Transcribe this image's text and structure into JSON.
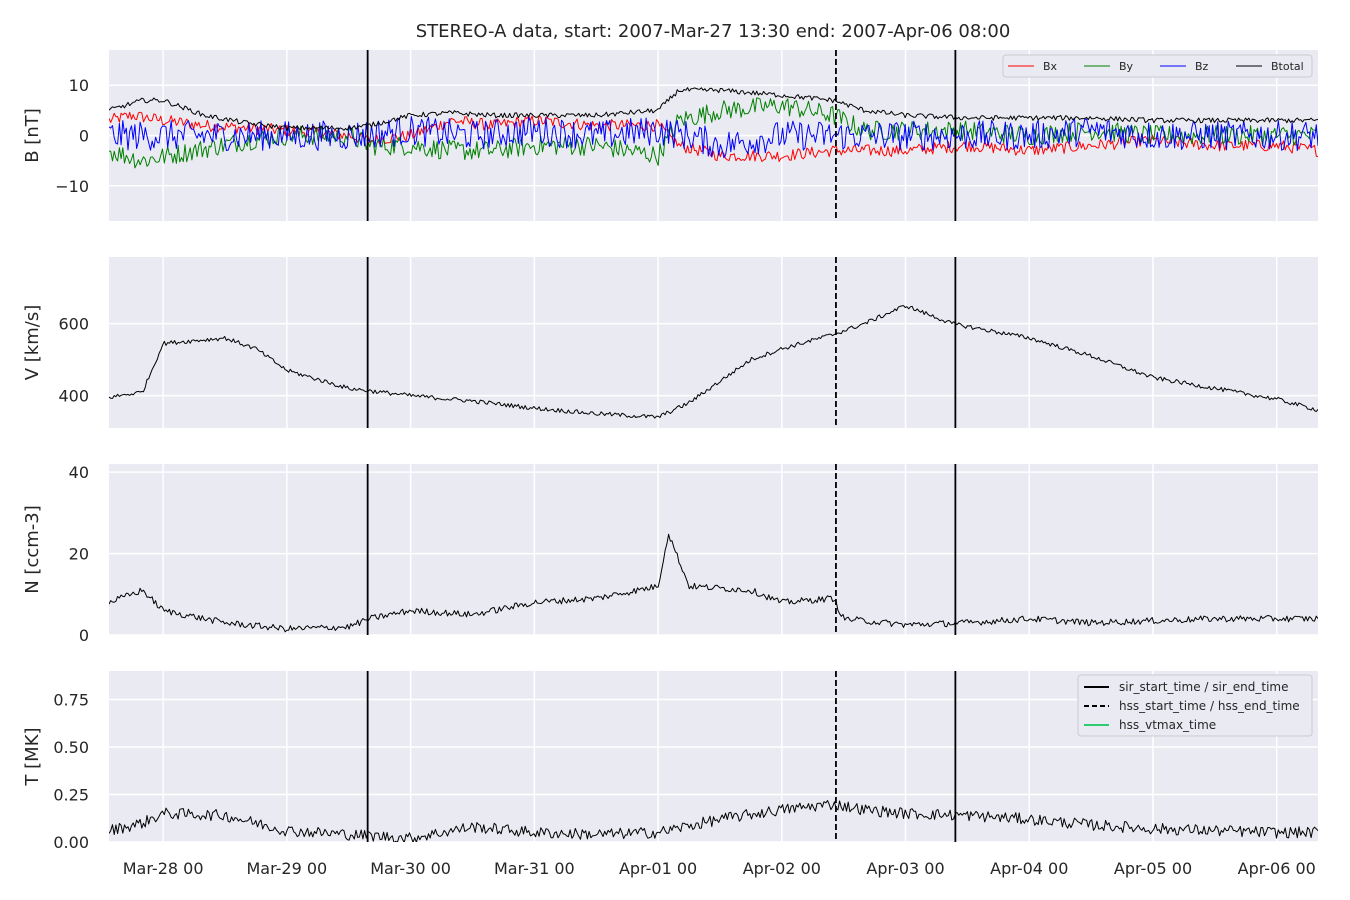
{
  "chart_data": {
    "type": "line",
    "title": "STEREO-A data, start: 2007-Mar-27 13:30  end: 2007-Apr-06 08:00",
    "x_range": [
      "2007-03-27 13:30",
      "2007-04-06 08:00"
    ],
    "x_ticks": [
      "2007-03-28 00:00",
      "2007-03-29 00:00",
      "2007-03-30 00:00",
      "2007-03-31 00:00",
      "2007-04-01 00:00",
      "2007-04-02 00:00",
      "2007-04-03 00:00",
      "2007-04-04 00:00",
      "2007-04-05 00:00",
      "2007-04-06 00:00"
    ],
    "x_tick_labels": [
      "Mar-28 00",
      "Mar-29 00",
      "Mar-30 00",
      "Mar-31 00",
      "Apr-01 00",
      "Apr-02 00",
      "Apr-03 00",
      "Apr-04 00",
      "Apr-05 00",
      "Apr-06 00"
    ],
    "grid": true,
    "event_lines": [
      {
        "name": "sir_start_time",
        "time": "2007-03-29 15:40",
        "style": "solid",
        "color": "#000000"
      },
      {
        "name": "hss_start_time",
        "time": "2007-04-02 10:30",
        "style": "dashed",
        "color": "#000000"
      },
      {
        "name": "sir_end_time",
        "time": "2007-04-03 09:40",
        "style": "solid",
        "color": "#000000"
      }
    ],
    "legend_events": [
      {
        "label": "sir_start_time / sir_end_time",
        "style": "solid",
        "color": "#000000"
      },
      {
        "label": "hss_start_time / hss_end_time",
        "style": "dashed",
        "color": "#000000"
      },
      {
        "label": "hss_vtmax_time",
        "style": "solid",
        "color": "#2ecc71"
      }
    ],
    "panels": [
      {
        "ylabel": "B [nT]",
        "ylim": [
          -17,
          17
        ],
        "yticks": [
          -10,
          0,
          10
        ],
        "ytick_labels": [
          "−10",
          "0",
          "10"
        ],
        "legend_placement": "top-right",
        "series": [
          {
            "name": "Bx",
            "color": "#ff0000",
            "noise": 1.2,
            "points": [
              [
                "2007-03-27 13:30",
                3
              ],
              [
                "2007-03-27 18:00",
                4
              ],
              [
                "2007-03-28 00:00",
                3
              ],
              [
                "2007-03-28 08:00",
                2
              ],
              [
                "2007-03-28 16:00",
                1.5
              ],
              [
                "2007-03-29 00:00",
                1
              ],
              [
                "2007-03-29 12:00",
                0
              ],
              [
                "2007-03-29 16:00",
                -1
              ],
              [
                "2007-03-30 00:00",
                0
              ],
              [
                "2007-03-30 08:00",
                3
              ],
              [
                "2007-03-30 16:00",
                2
              ],
              [
                "2007-03-31 00:00",
                3
              ],
              [
                "2007-03-31 12:00",
                2
              ],
              [
                "2007-04-01 00:00",
                2
              ],
              [
                "2007-04-01 04:00",
                -2
              ],
              [
                "2007-04-01 12:00",
                -4
              ],
              [
                "2007-04-02 00:00",
                -4
              ],
              [
                "2007-04-02 10:00",
                -3
              ],
              [
                "2007-04-02 16:00",
                -3
              ],
              [
                "2007-04-03 00:00",
                -3
              ],
              [
                "2007-04-03 12:00",
                -2
              ],
              [
                "2007-04-04 00:00",
                -3
              ],
              [
                "2007-04-04 12:00",
                -2
              ],
              [
                "2007-04-05 00:00",
                -1
              ],
              [
                "2007-04-05 12:00",
                -2
              ],
              [
                "2007-04-06 00:00",
                -2
              ],
              [
                "2007-04-06 08:00",
                -3
              ]
            ]
          },
          {
            "name": "By",
            "color": "#008000",
            "noise": 2.0,
            "points": [
              [
                "2007-03-27 13:30",
                -3
              ],
              [
                "2007-03-27 20:00",
                -5
              ],
              [
                "2007-03-28 06:00",
                -3
              ],
              [
                "2007-03-28 16:00",
                -1
              ],
              [
                "2007-03-29 00:00",
                0
              ],
              [
                "2007-03-29 12:00",
                0
              ],
              [
                "2007-03-29 16:00",
                -2
              ],
              [
                "2007-03-30 00:00",
                -2
              ],
              [
                "2007-03-30 08:00",
                -3
              ],
              [
                "2007-03-30 16:00",
                -3
              ],
              [
                "2007-03-31 00:00",
                -2
              ],
              [
                "2007-03-31 12:00",
                -2
              ],
              [
                "2007-04-01 00:00",
                -4
              ],
              [
                "2007-04-01 04:00",
                3
              ],
              [
                "2007-04-01 12:00",
                5
              ],
              [
                "2007-04-02 00:00",
                6
              ],
              [
                "2007-04-02 10:00",
                4
              ],
              [
                "2007-04-02 16:00",
                1
              ],
              [
                "2007-04-03 00:00",
                1
              ],
              [
                "2007-04-03 12:00",
                1
              ],
              [
                "2007-04-04 00:00",
                0
              ],
              [
                "2007-04-04 12:00",
                1
              ],
              [
                "2007-04-05 00:00",
                0
              ],
              [
                "2007-04-05 12:00",
                0
              ],
              [
                "2007-04-06 00:00",
                0
              ],
              [
                "2007-04-06 08:00",
                0
              ]
            ]
          },
          {
            "name": "Bz",
            "color": "#0000ff",
            "noise": 3.0,
            "points": [
              [
                "2007-03-27 13:30",
                0
              ],
              [
                "2007-03-28 00:00",
                0
              ],
              [
                "2007-03-28 12:00",
                0
              ],
              [
                "2007-03-29 00:00",
                0
              ],
              [
                "2007-03-29 12:00",
                0
              ],
              [
                "2007-03-30 00:00",
                1
              ],
              [
                "2007-03-30 12:00",
                0
              ],
              [
                "2007-03-31 00:00",
                1
              ],
              [
                "2007-03-31 12:00",
                0
              ],
              [
                "2007-04-01 00:00",
                1
              ],
              [
                "2007-04-01 06:00",
                0
              ],
              [
                "2007-04-01 12:00",
                -2
              ],
              [
                "2007-04-02 00:00",
                0
              ],
              [
                "2007-04-02 12:00",
                0
              ],
              [
                "2007-04-03 00:00",
                0
              ],
              [
                "2007-04-03 12:00",
                0
              ],
              [
                "2007-04-04 00:00",
                0
              ],
              [
                "2007-04-04 12:00",
                1
              ],
              [
                "2007-04-05 00:00",
                0
              ],
              [
                "2007-04-05 12:00",
                0
              ],
              [
                "2007-04-06 00:00",
                0
              ],
              [
                "2007-04-06 08:00",
                0
              ]
            ]
          },
          {
            "name": "Btotal",
            "color": "#000000",
            "noise": 0.5,
            "points": [
              [
                "2007-03-27 13:30",
                5
              ],
              [
                "2007-03-27 20:00",
                7
              ],
              [
                "2007-03-28 00:00",
                7
              ],
              [
                "2007-03-28 08:00",
                4
              ],
              [
                "2007-03-28 16:00",
                2.5
              ],
              [
                "2007-03-29 00:00",
                1.5
              ],
              [
                "2007-03-29 12:00",
                1.5
              ],
              [
                "2007-03-29 16:00",
                2
              ],
              [
                "2007-03-30 00:00",
                4
              ],
              [
                "2007-03-30 08:00",
                4.5
              ],
              [
                "2007-03-30 16:00",
                4
              ],
              [
                "2007-03-31 00:00",
                4
              ],
              [
                "2007-03-31 12:00",
                4
              ],
              [
                "2007-04-01 00:00",
                5
              ],
              [
                "2007-04-01 04:00",
                9
              ],
              [
                "2007-04-01 12:00",
                9
              ],
              [
                "2007-04-02 00:00",
                8
              ],
              [
                "2007-04-02 10:00",
                7
              ],
              [
                "2007-04-02 16:00",
                5
              ],
              [
                "2007-04-03 00:00",
                4
              ],
              [
                "2007-04-03 12:00",
                3.5
              ],
              [
                "2007-04-04 00:00",
                3.5
              ],
              [
                "2007-04-04 12:00",
                3.5
              ],
              [
                "2007-04-05 00:00",
                3
              ],
              [
                "2007-04-05 12:00",
                3
              ],
              [
                "2007-04-06 00:00",
                3
              ],
              [
                "2007-04-06 08:00",
                3
              ]
            ]
          }
        ]
      },
      {
        "ylabel": "V [km/s]",
        "ylim": [
          310,
          785
        ],
        "yticks": [
          400,
          600
        ],
        "ytick_labels": [
          "400",
          "600"
        ],
        "series": [
          {
            "name": "",
            "color": "#000000",
            "noise": 6,
            "points": [
              [
                "2007-03-27 13:30",
                395
              ],
              [
                "2007-03-27 20:00",
                410
              ],
              [
                "2007-03-28 00:00",
                545
              ],
              [
                "2007-03-28 12:00",
                560
              ],
              [
                "2007-03-28 18:00",
                530
              ],
              [
                "2007-03-29 00:00",
                470
              ],
              [
                "2007-03-29 12:00",
                420
              ],
              [
                "2007-03-30 00:00",
                400
              ],
              [
                "2007-03-30 12:00",
                385
              ],
              [
                "2007-03-31 00:00",
                365
              ],
              [
                "2007-03-31 12:00",
                350
              ],
              [
                "2007-04-01 00:00",
                340
              ],
              [
                "2007-04-01 06:00",
                380
              ],
              [
                "2007-04-01 18:00",
                500
              ],
              [
                "2007-04-02 00:00",
                530
              ],
              [
                "2007-04-02 10:00",
                570
              ],
              [
                "2007-04-02 16:00",
                600
              ],
              [
                "2007-04-03 00:00",
                650
              ],
              [
                "2007-04-03 09:00",
                600
              ],
              [
                "2007-04-04 00:00",
                560
              ],
              [
                "2007-04-04 12:00",
                510
              ],
              [
                "2007-04-05 00:00",
                450
              ],
              [
                "2007-04-05 12:00",
                420
              ],
              [
                "2007-04-06 00:00",
                390
              ],
              [
                "2007-04-06 08:00",
                360
              ]
            ]
          }
        ]
      },
      {
        "ylabel": "N [ccm-3]",
        "ylim": [
          0,
          42
        ],
        "yticks": [
          0,
          20,
          40
        ],
        "ytick_labels": [
          "0",
          "20",
          "40"
        ],
        "series": [
          {
            "name": "",
            "color": "#000000",
            "noise": 0.8,
            "points": [
              [
                "2007-03-27 13:30",
                8
              ],
              [
                "2007-03-27 20:00",
                11
              ],
              [
                "2007-03-28 00:00",
                6
              ],
              [
                "2007-03-28 12:00",
                3
              ],
              [
                "2007-03-29 00:00",
                1.5
              ],
              [
                "2007-03-29 12:00",
                2
              ],
              [
                "2007-03-29 16:00",
                4
              ],
              [
                "2007-03-30 00:00",
                6
              ],
              [
                "2007-03-30 12:00",
                5
              ],
              [
                "2007-03-31 00:00",
                8
              ],
              [
                "2007-03-31 12:00",
                9
              ],
              [
                "2007-04-01 00:00",
                12
              ],
              [
                "2007-04-01 02:00",
                25
              ],
              [
                "2007-04-01 06:00",
                12
              ],
              [
                "2007-04-01 18:00",
                11
              ],
              [
                "2007-04-02 00:00",
                8
              ],
              [
                "2007-04-02 10:00",
                9
              ],
              [
                "2007-04-02 12:00",
                4
              ],
              [
                "2007-04-03 00:00",
                2.5
              ],
              [
                "2007-04-03 12:00",
                3
              ],
              [
                "2007-04-04 00:00",
                4
              ],
              [
                "2007-04-04 12:00",
                3
              ],
              [
                "2007-04-05 00:00",
                3.5
              ],
              [
                "2007-04-05 12:00",
                4
              ],
              [
                "2007-04-06 00:00",
                4
              ],
              [
                "2007-04-06 08:00",
                4
              ]
            ]
          }
        ]
      },
      {
        "ylabel": "T [MK]",
        "ylim": [
          0,
          0.9
        ],
        "yticks": [
          0.0,
          0.25,
          0.5,
          0.75
        ],
        "ytick_labels": [
          "0.00",
          "0.25",
          "0.50",
          "0.75"
        ],
        "legend_placement": "top-right",
        "series": [
          {
            "name": "",
            "color": "#000000",
            "noise": 0.03,
            "points": [
              [
                "2007-03-27 13:30",
                0.06
              ],
              [
                "2007-03-27 20:00",
                0.1
              ],
              [
                "2007-03-28 00:00",
                0.15
              ],
              [
                "2007-03-28 12:00",
                0.14
              ],
              [
                "2007-03-29 00:00",
                0.06
              ],
              [
                "2007-03-29 12:00",
                0.04
              ],
              [
                "2007-03-30 00:00",
                0.02
              ],
              [
                "2007-03-30 12:00",
                0.08
              ],
              [
                "2007-03-31 00:00",
                0.05
              ],
              [
                "2007-03-31 12:00",
                0.04
              ],
              [
                "2007-04-01 00:00",
                0.05
              ],
              [
                "2007-04-01 12:00",
                0.12
              ],
              [
                "2007-04-02 00:00",
                0.17
              ],
              [
                "2007-04-02 10:00",
                0.2
              ],
              [
                "2007-04-02 16:00",
                0.17
              ],
              [
                "2007-04-03 00:00",
                0.15
              ],
              [
                "2007-04-03 12:00",
                0.14
              ],
              [
                "2007-04-04 00:00",
                0.12
              ],
              [
                "2007-04-04 12:00",
                0.09
              ],
              [
                "2007-04-05 00:00",
                0.07
              ],
              [
                "2007-04-05 12:00",
                0.06
              ],
              [
                "2007-04-06 00:00",
                0.05
              ],
              [
                "2007-04-06 08:00",
                0.05
              ]
            ]
          }
        ]
      }
    ]
  }
}
